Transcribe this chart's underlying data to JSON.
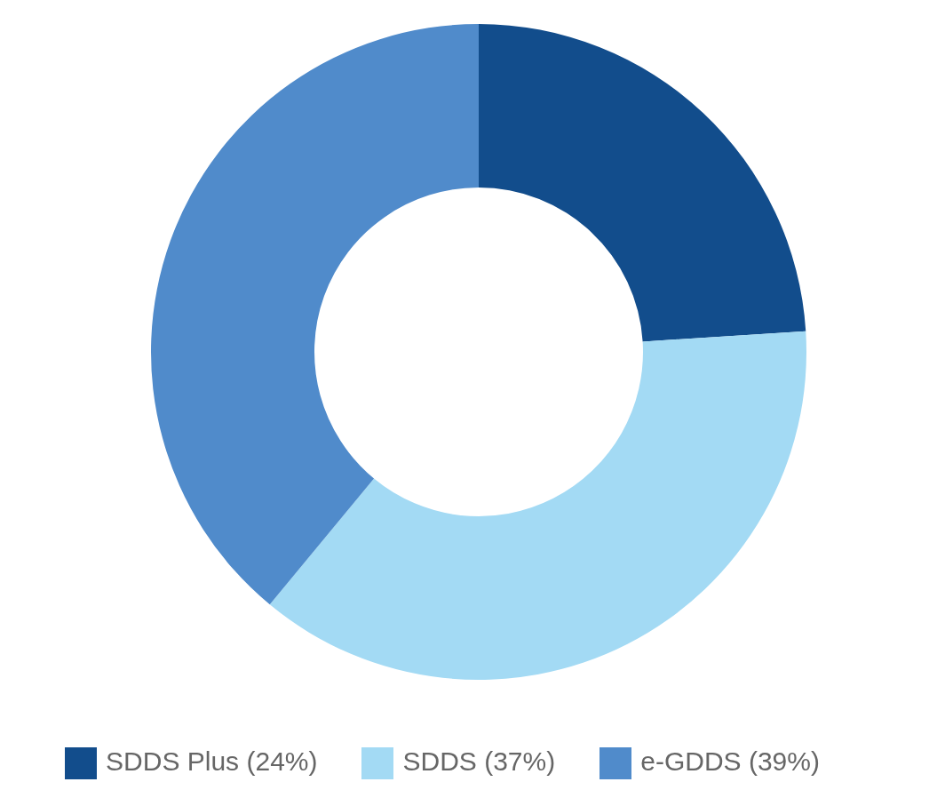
{
  "chart_data": {
    "type": "donut",
    "categories": [
      "SDDS Plus (24%)",
      "SDDS (37%)",
      "e-GDDS (39%)"
    ],
    "values": [
      24,
      37,
      39
    ],
    "colors": [
      "#124d8c",
      "#a3daf4",
      "#508bcb"
    ],
    "legend": "bottom"
  }
}
